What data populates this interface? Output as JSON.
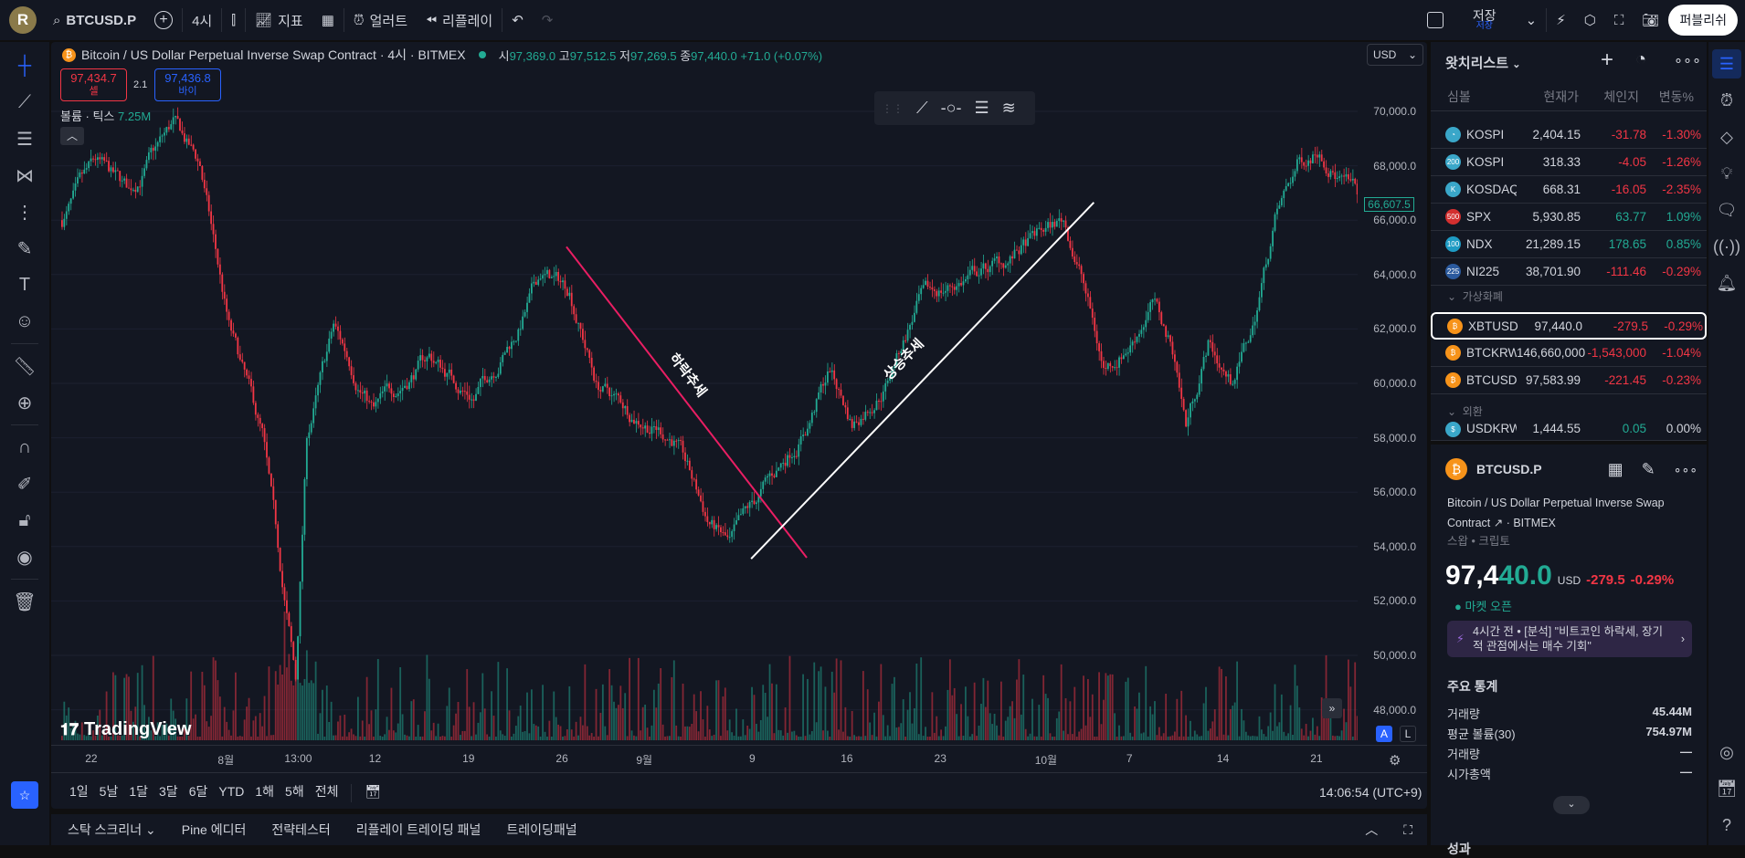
{
  "topbar": {
    "avatar": "R",
    "symbol": "BTCUSD.P",
    "interval": "4시",
    "indicators": "지표",
    "alert": "얼러트",
    "replay": "리플레이",
    "save": "저장",
    "save_sub": "저장",
    "publish": "퍼블리쉬"
  },
  "legend": {
    "title": "Bitcoin / US Dollar Perpetual Inverse Swap Contract · 4시 · BITMEX",
    "o_label": "시",
    "o": "97,369.0",
    "h_label": "고",
    "h": "97,512.5",
    "l_label": "저",
    "l": "97,269.5",
    "c_label": "종",
    "c": "97,440.0",
    "chg": "+71.0 (+0.07%)",
    "sell_price": "97,434.7",
    "sell_label": "셀",
    "spread": "2.1",
    "buy_price": "97,436.8",
    "buy_label": "바이",
    "volume_label": "볼륨 · 틱스",
    "volume_value": "7.25M"
  },
  "currency": "USD",
  "price_axis": [
    "70,000.0",
    "68,000.0",
    "66,000.0",
    "64,000.0",
    "62,000.0",
    "60,000.0",
    "58,000.0",
    "56,000.0",
    "54,000.0",
    "52,000.0",
    "50,000.0",
    "48,000.0"
  ],
  "last_price_tag": "66,607.5",
  "time_axis": [
    "22",
    "8월",
    "13:00",
    "12",
    "19",
    "26",
    "9월",
    "9",
    "16",
    "23",
    "10월",
    "7",
    "14",
    "21"
  ],
  "annotations": {
    "down": "하락추세",
    "up": "상승추세"
  },
  "price_path": [
    [
      0,
      66000
    ],
    [
      15,
      68000
    ],
    [
      30,
      67000
    ],
    [
      50,
      69500
    ],
    [
      62,
      68000
    ],
    [
      75,
      62000
    ],
    [
      90,
      58000
    ],
    [
      100,
      52000
    ],
    [
      105,
      49000
    ],
    [
      110,
      58000
    ],
    [
      122,
      62000
    ],
    [
      140,
      59000
    ],
    [
      165,
      61000
    ],
    [
      185,
      59500
    ],
    [
      205,
      62000
    ],
    [
      215,
      64000
    ],
    [
      228,
      63500
    ],
    [
      240,
      60000
    ],
    [
      255,
      59000
    ],
    [
      275,
      58000
    ],
    [
      290,
      55000
    ],
    [
      300,
      54000
    ],
    [
      315,
      56000
    ],
    [
      335,
      58500
    ],
    [
      345,
      60500
    ],
    [
      355,
      58500
    ],
    [
      370,
      60000
    ],
    [
      385,
      63000
    ],
    [
      410,
      64000
    ],
    [
      425,
      64500
    ],
    [
      440,
      65500
    ],
    [
      450,
      66000
    ],
    [
      458,
      64000
    ],
    [
      468,
      60500
    ],
    [
      480,
      61500
    ],
    [
      490,
      63000
    ],
    [
      500,
      61000
    ],
    [
      505,
      58500
    ],
    [
      515,
      61500
    ],
    [
      525,
      60000
    ],
    [
      535,
      62000
    ],
    [
      545,
      66000
    ],
    [
      555,
      68000
    ],
    [
      565,
      68800
    ],
    [
      575,
      67500
    ],
    [
      585,
      66600
    ]
  ],
  "range_buttons": [
    "1일",
    "5날",
    "1달",
    "3달",
    "6달",
    "YTD",
    "1해",
    "5해",
    "전체"
  ],
  "clock": "14:06:54 (UTC+9)",
  "scale_buttons": [
    "A",
    "L"
  ],
  "logo": "TradingView",
  "bottom_tabs": [
    "스탁 스크리너",
    "Pine 에디터",
    "전략테스터",
    "리플레이 트레이딩 패널",
    "트레이딩패널"
  ],
  "watchlist": {
    "title": "왓치리스트",
    "headers": [
      "심볼",
      "현재가",
      "체인지",
      "변동%"
    ],
    "rows": [
      {
        "icon": "◔",
        "color": "#3aa7c9",
        "sym": "KOSPI",
        "price": "2,404.15",
        "chg": "-31.78",
        "pct": "-1.30%",
        "dir": "red"
      },
      {
        "icon": "200",
        "color": "#3aa7c9",
        "sym": "KOSPI",
        "price": "318.33",
        "chg": "-4.05",
        "pct": "-1.26%",
        "dir": "red"
      },
      {
        "icon": "K",
        "color": "#3aa7c9",
        "sym": "KOSDAQ",
        "price": "668.31",
        "chg": "-16.05",
        "pct": "-2.35%",
        "dir": "red"
      },
      {
        "icon": "500",
        "color": "#d32f2f",
        "sym": "SPX",
        "price": "5,930.85",
        "chg": "63.77",
        "pct": "1.09%",
        "dir": "green"
      },
      {
        "icon": "100",
        "color": "#1e9bc4",
        "sym": "NDX",
        "price": "21,289.15",
        "chg": "178.65",
        "pct": "0.85%",
        "dir": "green"
      },
      {
        "icon": "225",
        "color": "#2b5a9e",
        "sym": "NI225",
        "price": "38,701.90",
        "chg": "-111.46",
        "pct": "-0.29%",
        "dir": "red"
      }
    ],
    "group1": "가상화폐",
    "crypto": [
      {
        "sym": "XBTUSD",
        "price": "97,440.0",
        "chg": "-279.5",
        "pct": "-0.29%"
      },
      {
        "sym": "BTCKRW",
        "price": "146,660,000",
        "chg": "-1,543,000",
        "pct": "-1.04%"
      },
      {
        "sym": "BTCUSD",
        "price": "97,583.99",
        "chg": "-221.45",
        "pct": "-0.23%"
      }
    ],
    "group2": "외환",
    "fx": {
      "sym": "USDKRW",
      "price": "1,444.55",
      "chg": "0.05",
      "pct": "0.00%"
    }
  },
  "details": {
    "symbol": "BTCUSD.P",
    "name1": "Bitcoin / US Dollar Perpetual Inverse Swap",
    "name2": "Contract",
    "exchange": "· BITMEX",
    "type": "스왑 • 크립토",
    "price_main": "97,4",
    "price_tail": "40.0",
    "currency": "USD",
    "chg": "-279.5",
    "pct": "-0.29%",
    "status": "마켓 오픈",
    "news": "4시간 전 • [분석] \"비트코인 하락세, 장기적 관점에서는 매수 기회\"",
    "stats_title": "주요 통계",
    "stats": [
      {
        "k": "거래량",
        "v": "45.44M"
      },
      {
        "k": "평균 볼륨(30)",
        "v": "754.97M"
      },
      {
        "k": "거래량",
        "v": "—"
      },
      {
        "k": "시가총액",
        "v": "—"
      }
    ],
    "perf_title": "성과"
  },
  "colors": {
    "up": "#22ab94",
    "down": "#f23645",
    "bg": "#131722",
    "accent": "#2962ff"
  }
}
